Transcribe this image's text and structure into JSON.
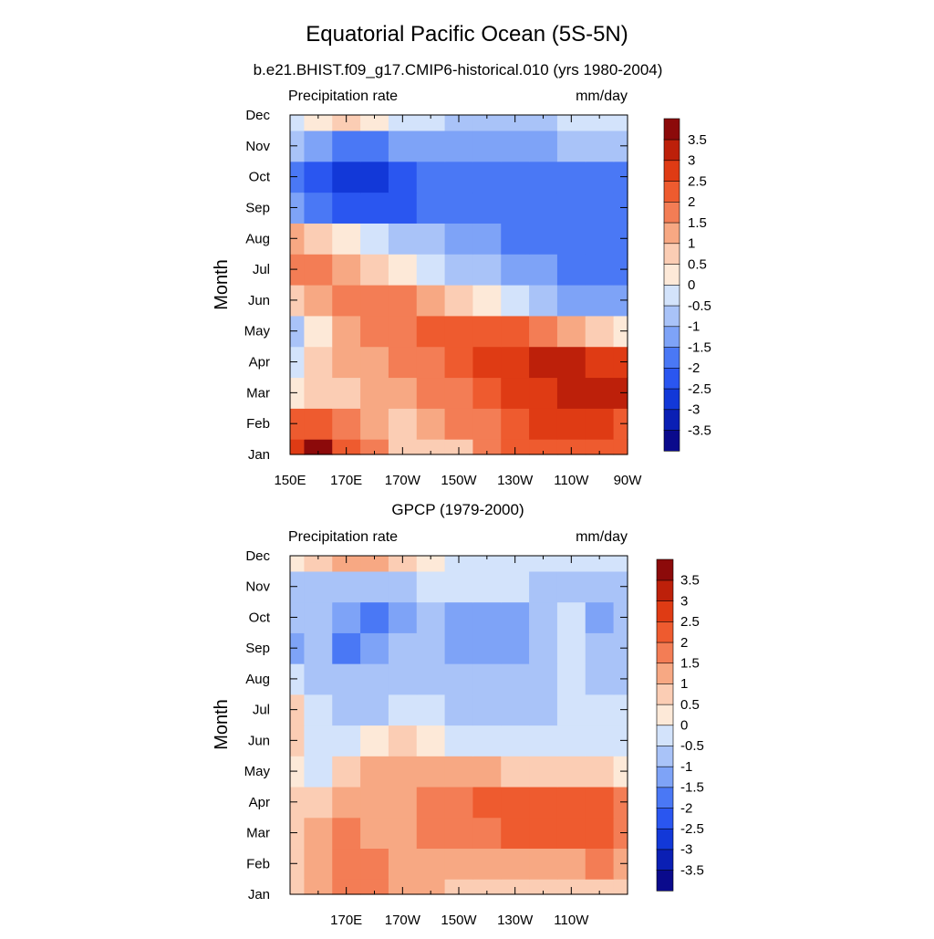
{
  "figure": {
    "title": "Equatorial Pacific Ocean (5S-5N)"
  },
  "colorbar": {
    "colors": [
      "#0a0a8c",
      "#0a1fb4",
      "#1238d8",
      "#2a56f0",
      "#4a78f5",
      "#7ea3f7",
      "#a9c3f8",
      "#d3e3fb",
      "#fde9d8",
      "#fbcdb4",
      "#f7a883",
      "#f37d55",
      "#ee5b2f",
      "#df3b14",
      "#bd200a",
      "#8c0a0a"
    ],
    "labels": [
      "-3.5",
      "-3",
      "-2.5",
      "-2",
      "-1.5",
      "-1",
      "-0.5",
      "0",
      "0.5",
      "1",
      "1.5",
      "2",
      "2.5",
      "3",
      "3.5"
    ]
  },
  "chart_data": [
    {
      "type": "heatmap",
      "title": "b.e21.BHIST.f09_g17.CMIP6-historical.010 (yrs 1980-2004)",
      "left_label": "Precipitation rate",
      "right_label": "mm/day",
      "ylabel": "Month",
      "xlabel": "",
      "y_ticks": [
        "Jan",
        "Feb",
        "Mar",
        "Apr",
        "May",
        "Jun",
        "Jul",
        "Aug",
        "Sep",
        "Oct",
        "Nov",
        "Dec"
      ],
      "x_ticks": [
        "150E",
        "170E",
        "170W",
        "150W",
        "130W",
        "110W",
        "90W"
      ],
      "x_tick_values": [
        150,
        170,
        190,
        210,
        230,
        250,
        270
      ],
      "xlim": [
        150,
        270
      ],
      "x": [
        150,
        160,
        170,
        180,
        190,
        200,
        210,
        220,
        230,
        240,
        250,
        260,
        270
      ],
      "values": [
        [
          2.5,
          3.5,
          2.0,
          1.5,
          0.5,
          0.5,
          0.5,
          1.5,
          2.0,
          2.0,
          2.0,
          2.0,
          2.0
        ],
        [
          2.0,
          2.0,
          1.5,
          1.0,
          0.5,
          1.0,
          1.5,
          1.5,
          2.0,
          2.5,
          2.5,
          2.5,
          2.0
        ],
        [
          0.0,
          0.5,
          0.5,
          1.0,
          1.0,
          1.5,
          1.5,
          2.0,
          2.5,
          2.5,
          3.0,
          3.0,
          3.0
        ],
        [
          -0.5,
          0.5,
          1.0,
          1.0,
          1.5,
          1.5,
          2.0,
          2.5,
          2.5,
          3.0,
          3.0,
          2.5,
          2.5
        ],
        [
          -1.0,
          0.0,
          1.0,
          1.5,
          1.5,
          2.0,
          2.0,
          2.0,
          2.0,
          1.5,
          1.0,
          0.5,
          0.0
        ],
        [
          0.5,
          1.0,
          1.5,
          1.5,
          1.5,
          1.0,
          0.5,
          0.0,
          -0.5,
          -1.0,
          -1.5,
          -1.5,
          -1.5
        ],
        [
          1.5,
          1.5,
          1.0,
          0.5,
          0.0,
          -0.5,
          -1.0,
          -1.0,
          -1.5,
          -1.5,
          -2.0,
          -2.0,
          -2.0
        ],
        [
          1.0,
          0.5,
          0.0,
          -0.5,
          -1.0,
          -1.0,
          -1.5,
          -1.5,
          -2.0,
          -2.0,
          -2.0,
          -2.0,
          -2.0
        ],
        [
          -1.5,
          -2.0,
          -2.5,
          -2.5,
          -2.5,
          -2.0,
          -2.0,
          -2.0,
          -2.0,
          -2.0,
          -2.0,
          -2.0,
          -2.0
        ],
        [
          -2.0,
          -2.5,
          -3.0,
          -3.0,
          -2.5,
          -2.0,
          -2.0,
          -2.0,
          -2.0,
          -2.0,
          -2.0,
          -2.0,
          -2.0
        ],
        [
          -1.0,
          -1.5,
          -2.0,
          -2.0,
          -1.5,
          -1.5,
          -1.5,
          -1.5,
          -1.5,
          -1.5,
          -1.0,
          -1.0,
          -1.0
        ],
        [
          -0.5,
          0.0,
          0.5,
          0.0,
          -0.5,
          -0.5,
          -1.0,
          -1.0,
          -1.0,
          -1.0,
          -0.5,
          -0.5,
          -0.5
        ]
      ]
    },
    {
      "type": "heatmap",
      "title": "GPCP (1979-2000)",
      "left_label": "Precipitation rate",
      "right_label": "mm/day",
      "ylabel": "Month",
      "xlabel": "",
      "y_ticks": [
        "Jan",
        "Feb",
        "Mar",
        "Apr",
        "May",
        "Jun",
        "Jul",
        "Aug",
        "Sep",
        "Oct",
        "Nov",
        "Dec"
      ],
      "x_ticks": [
        "170E",
        "170W",
        "150W",
        "130W",
        "110W"
      ],
      "x_tick_values": [
        170,
        190,
        210,
        230,
        250
      ],
      "xlim": [
        150,
        270
      ],
      "x": [
        150,
        160,
        170,
        180,
        190,
        200,
        210,
        220,
        230,
        240,
        250,
        260,
        270
      ],
      "values": [
        [
          0.5,
          1.0,
          1.5,
          1.5,
          1.0,
          1.0,
          0.5,
          0.5,
          0.5,
          0.5,
          0.5,
          0.5,
          0.5
        ],
        [
          0.5,
          1.0,
          1.5,
          1.5,
          1.0,
          1.0,
          1.0,
          1.0,
          1.0,
          1.0,
          1.0,
          1.5,
          1.0
        ],
        [
          0.5,
          1.0,
          1.5,
          1.0,
          1.0,
          1.5,
          1.5,
          1.5,
          2.0,
          2.0,
          2.0,
          2.0,
          1.5
        ],
        [
          0.5,
          0.5,
          1.0,
          1.0,
          1.0,
          1.5,
          1.5,
          2.0,
          2.0,
          2.0,
          2.0,
          2.0,
          1.5
        ],
        [
          0.0,
          -0.5,
          0.5,
          1.0,
          1.0,
          1.0,
          1.0,
          1.0,
          0.5,
          0.5,
          0.5,
          0.5,
          0.0
        ],
        [
          0.5,
          -0.5,
          -0.5,
          0.0,
          0.5,
          0.0,
          -0.5,
          -0.5,
          -0.5,
          -0.5,
          -0.5,
          -0.5,
          -0.5
        ],
        [
          0.5,
          -0.5,
          -1.0,
          -1.0,
          -0.5,
          -0.5,
          -1.0,
          -1.0,
          -1.0,
          -1.0,
          -0.5,
          -0.5,
          -0.5
        ],
        [
          -0.5,
          -1.0,
          -1.0,
          -1.0,
          -1.0,
          -1.0,
          -1.0,
          -1.0,
          -1.0,
          -1.0,
          -0.5,
          -1.0,
          -1.0
        ],
        [
          -1.5,
          -1.0,
          -2.0,
          -1.5,
          -1.0,
          -1.0,
          -1.5,
          -1.5,
          -1.5,
          -1.0,
          -0.5,
          -1.0,
          -1.0
        ],
        [
          -1.0,
          -1.0,
          -1.5,
          -2.0,
          -1.5,
          -1.0,
          -1.5,
          -1.5,
          -1.5,
          -1.0,
          -0.5,
          -1.5,
          -1.0
        ],
        [
          -1.0,
          -1.0,
          -1.0,
          -1.0,
          -1.0,
          -0.5,
          -0.5,
          -0.5,
          -0.5,
          -1.0,
          -1.0,
          -1.0,
          -1.0
        ],
        [
          0.0,
          0.5,
          1.0,
          1.0,
          0.5,
          0.0,
          -0.5,
          -0.5,
          -0.5,
          -0.5,
          -0.5,
          -0.5,
          -0.5
        ]
      ]
    }
  ]
}
